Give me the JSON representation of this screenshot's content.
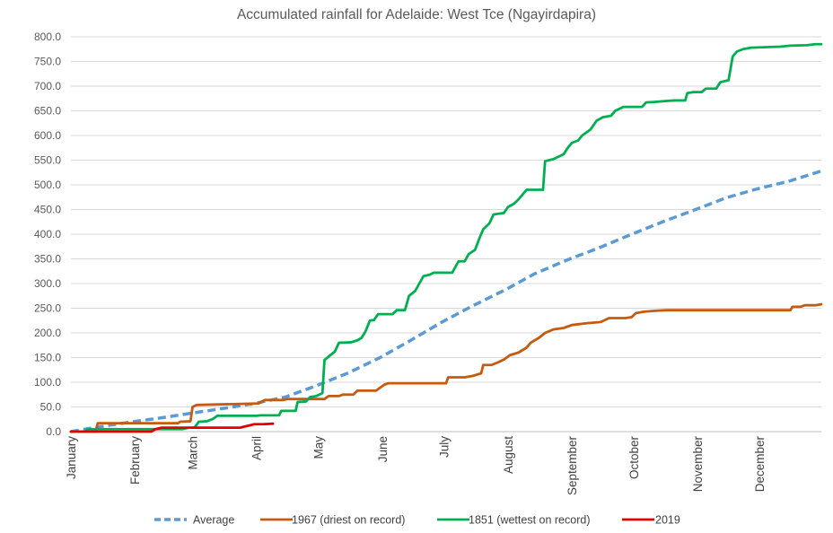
{
  "chart_data": {
    "type": "line",
    "title": "Accumulated rainfall for Adelaide: West Tce (Ngayirdapira)",
    "xlabel": "",
    "ylabel": "",
    "ylim": [
      0,
      800
    ],
    "y_ticks": [
      "0.0",
      "50.0",
      "100.0",
      "150.0",
      "200.0",
      "250.0",
      "300.0",
      "350.0",
      "400.0",
      "450.0",
      "500.0",
      "550.0",
      "600.0",
      "650.0",
      "700.0",
      "750.0",
      "800.0"
    ],
    "x_unit": "day_of_year",
    "xlim": [
      1,
      365
    ],
    "months": [
      {
        "label": "January",
        "day": 1
      },
      {
        "label": "February",
        "day": 32
      },
      {
        "label": "March",
        "day": 60
      },
      {
        "label": "April",
        "day": 91
      },
      {
        "label": "May",
        "day": 121
      },
      {
        "label": "June",
        "day": 152
      },
      {
        "label": "July",
        "day": 182
      },
      {
        "label": "August",
        "day": 213
      },
      {
        "label": "September",
        "day": 244
      },
      {
        "label": "October",
        "day": 274
      },
      {
        "label": "November",
        "day": 305
      },
      {
        "label": "December",
        "day": 335
      }
    ],
    "grid": true,
    "legend_position": "bottom",
    "series": [
      {
        "name": "Average",
        "color": "#5B9BD5",
        "style": "dashed",
        "points": [
          [
            1,
            0
          ],
          [
            15,
            10
          ],
          [
            31,
            20
          ],
          [
            45,
            28
          ],
          [
            59,
            37
          ],
          [
            75,
            47
          ],
          [
            90,
            57
          ],
          [
            105,
            70
          ],
          [
            120,
            93
          ],
          [
            135,
            118
          ],
          [
            151,
            150
          ],
          [
            165,
            183
          ],
          [
            181,
            222
          ],
          [
            195,
            253
          ],
          [
            212,
            288
          ],
          [
            226,
            320
          ],
          [
            243,
            350
          ],
          [
            257,
            372
          ],
          [
            273,
            400
          ],
          [
            288,
            425
          ],
          [
            304,
            450
          ],
          [
            319,
            474
          ],
          [
            334,
            492
          ],
          [
            349,
            507
          ],
          [
            365,
            528
          ]
        ]
      },
      {
        "name": "1967 (driest on record)",
        "color": "#C55A11",
        "style": "solid",
        "points": [
          [
            1,
            0
          ],
          [
            13,
            0
          ],
          [
            14,
            17
          ],
          [
            53,
            17
          ],
          [
            54,
            20
          ],
          [
            59,
            21
          ],
          [
            60,
            50
          ],
          [
            62,
            54
          ],
          [
            92,
            57
          ],
          [
            95,
            64
          ],
          [
            104,
            64
          ],
          [
            106,
            66
          ],
          [
            124,
            66
          ],
          [
            126,
            72
          ],
          [
            131,
            72
          ],
          [
            133,
            75
          ],
          [
            138,
            75
          ],
          [
            140,
            83
          ],
          [
            149,
            83
          ],
          [
            153,
            95
          ],
          [
            155,
            98
          ],
          [
            168,
            98
          ],
          [
            183,
            98
          ],
          [
            184,
            110
          ],
          [
            192,
            110
          ],
          [
            196,
            113
          ],
          [
            200,
            118
          ],
          [
            201,
            135
          ],
          [
            205,
            135
          ],
          [
            208,
            140
          ],
          [
            211,
            146
          ],
          [
            214,
            155
          ],
          [
            218,
            160
          ],
          [
            222,
            170
          ],
          [
            224,
            180
          ],
          [
            228,
            190
          ],
          [
            231,
            200
          ],
          [
            235,
            207
          ],
          [
            240,
            210
          ],
          [
            244,
            216
          ],
          [
            252,
            220
          ],
          [
            258,
            222
          ],
          [
            262,
            230
          ],
          [
            270,
            230
          ],
          [
            273,
            232
          ],
          [
            275,
            240
          ],
          [
            279,
            243
          ],
          [
            285,
            245
          ],
          [
            290,
            246
          ],
          [
            300,
            246
          ],
          [
            320,
            246
          ],
          [
            338,
            246
          ],
          [
            350,
            246
          ],
          [
            351,
            253
          ],
          [
            355,
            253
          ],
          [
            357,
            256
          ],
          [
            362,
            256
          ],
          [
            365,
            258
          ]
        ]
      },
      {
        "name": "1851 (wettest on record)",
        "color": "#00B050",
        "style": "solid",
        "points": [
          [
            1,
            0
          ],
          [
            8,
            0
          ],
          [
            9,
            5
          ],
          [
            15,
            5
          ],
          [
            25,
            5
          ],
          [
            55,
            5
          ],
          [
            58,
            8
          ],
          [
            61,
            8
          ],
          [
            63,
            20
          ],
          [
            67,
            21
          ],
          [
            70,
            26
          ],
          [
            72,
            32
          ],
          [
            91,
            32
          ],
          [
            93,
            33
          ],
          [
            102,
            33
          ],
          [
            103,
            42
          ],
          [
            110,
            42
          ],
          [
            111,
            60
          ],
          [
            115,
            61
          ],
          [
            117,
            70
          ],
          [
            120,
            72
          ],
          [
            123,
            78
          ],
          [
            124,
            145
          ],
          [
            126,
            152
          ],
          [
            129,
            162
          ],
          [
            131,
            180
          ],
          [
            137,
            181
          ],
          [
            140,
            185
          ],
          [
            142,
            190
          ],
          [
            144,
            204
          ],
          [
            146,
            225
          ],
          [
            148,
            226
          ],
          [
            150,
            238
          ],
          [
            157,
            238
          ],
          [
            159,
            246
          ],
          [
            163,
            246
          ],
          [
            165,
            275
          ],
          [
            168,
            285
          ],
          [
            170,
            300
          ],
          [
            172,
            315
          ],
          [
            175,
            318
          ],
          [
            177,
            322
          ],
          [
            186,
            322
          ],
          [
            187,
            330
          ],
          [
            189,
            345
          ],
          [
            192,
            345
          ],
          [
            194,
            360
          ],
          [
            197,
            368
          ],
          [
            199,
            390
          ],
          [
            201,
            410
          ],
          [
            204,
            422
          ],
          [
            206,
            440
          ],
          [
            211,
            443
          ],
          [
            213,
            455
          ],
          [
            216,
            462
          ],
          [
            218,
            470
          ],
          [
            220,
            480
          ],
          [
            222,
            490
          ],
          [
            230,
            490
          ],
          [
            231,
            548
          ],
          [
            235,
            552
          ],
          [
            238,
            558
          ],
          [
            240,
            562
          ],
          [
            242,
            575
          ],
          [
            244,
            585
          ],
          [
            247,
            590
          ],
          [
            249,
            600
          ],
          [
            253,
            612
          ],
          [
            256,
            630
          ],
          [
            259,
            637
          ],
          [
            263,
            640
          ],
          [
            265,
            650
          ],
          [
            269,
            658
          ],
          [
            278,
            658
          ],
          [
            280,
            667
          ],
          [
            284,
            668
          ],
          [
            290,
            670
          ],
          [
            294,
            671
          ],
          [
            299,
            671
          ],
          [
            300,
            686
          ],
          [
            303,
            688
          ],
          [
            307,
            688
          ],
          [
            309,
            695
          ],
          [
            314,
            695
          ],
          [
            316,
            708
          ],
          [
            318,
            710
          ],
          [
            320,
            712
          ],
          [
            322,
            760
          ],
          [
            324,
            770
          ],
          [
            327,
            775
          ],
          [
            331,
            778
          ],
          [
            345,
            780
          ],
          [
            350,
            782
          ],
          [
            358,
            783
          ],
          [
            362,
            785
          ],
          [
            365,
            785
          ]
        ]
      },
      {
        "name": "2019",
        "color": "#E00000",
        "style": "solid",
        "points": [
          [
            1,
            0
          ],
          [
            40,
            0
          ],
          [
            42,
            5
          ],
          [
            45,
            8
          ],
          [
            50,
            8
          ],
          [
            55,
            8
          ],
          [
            62,
            8
          ],
          [
            79,
            8
          ],
          [
            83,
            8
          ],
          [
            85,
            10
          ],
          [
            88,
            13
          ],
          [
            90,
            15
          ],
          [
            94,
            15
          ],
          [
            99,
            16
          ]
        ]
      }
    ]
  }
}
